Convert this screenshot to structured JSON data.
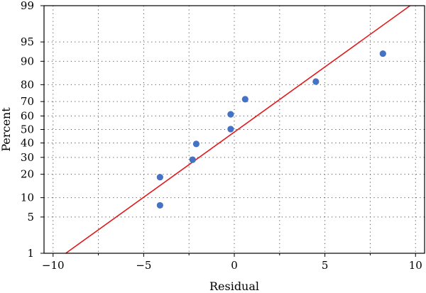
{
  "chart_data": {
    "type": "scatter",
    "subtype": "normal-probability-plot",
    "xlabel": "Residual",
    "ylabel": "Percent",
    "xlim": [
      -10.5,
      10.5
    ],
    "ylim_percent": [
      1,
      99
    ],
    "y_scale": "normal-probability",
    "grid": "dotted",
    "x_ticks": [
      -10,
      -5,
      0,
      5,
      10
    ],
    "x_tick_labels": [
      "−10",
      "−5",
      "0",
      "5",
      "10"
    ],
    "y_ticks": [
      1,
      5,
      10,
      20,
      30,
      40,
      50,
      60,
      70,
      80,
      90,
      95,
      99
    ],
    "y_tick_labels": [
      "1",
      "5",
      "10",
      "20",
      "30",
      "40",
      "50",
      "60",
      "70",
      "80",
      "90",
      "95",
      "99"
    ],
    "points": [
      {
        "x": -4.1,
        "y": 7.7
      },
      {
        "x": -4.1,
        "y": 18.5
      },
      {
        "x": -2.3,
        "y": 28.5
      },
      {
        "x": -2.1,
        "y": 39.3
      },
      {
        "x": -0.2,
        "y": 50.3
      },
      {
        "x": -0.2,
        "y": 61.2
      },
      {
        "x": 0.6,
        "y": 71.5
      },
      {
        "x": 4.5,
        "y": 81.6
      },
      {
        "x": 8.2,
        "y": 92.3
      }
    ],
    "fit_line": {
      "x0": -9.3,
      "y0": 1,
      "x1": 9.7,
      "y1": 99
    },
    "colors": {
      "points": "#4472c4",
      "fit_line": "#e31a1c",
      "axis": "#000000",
      "grid": "#555555"
    }
  }
}
